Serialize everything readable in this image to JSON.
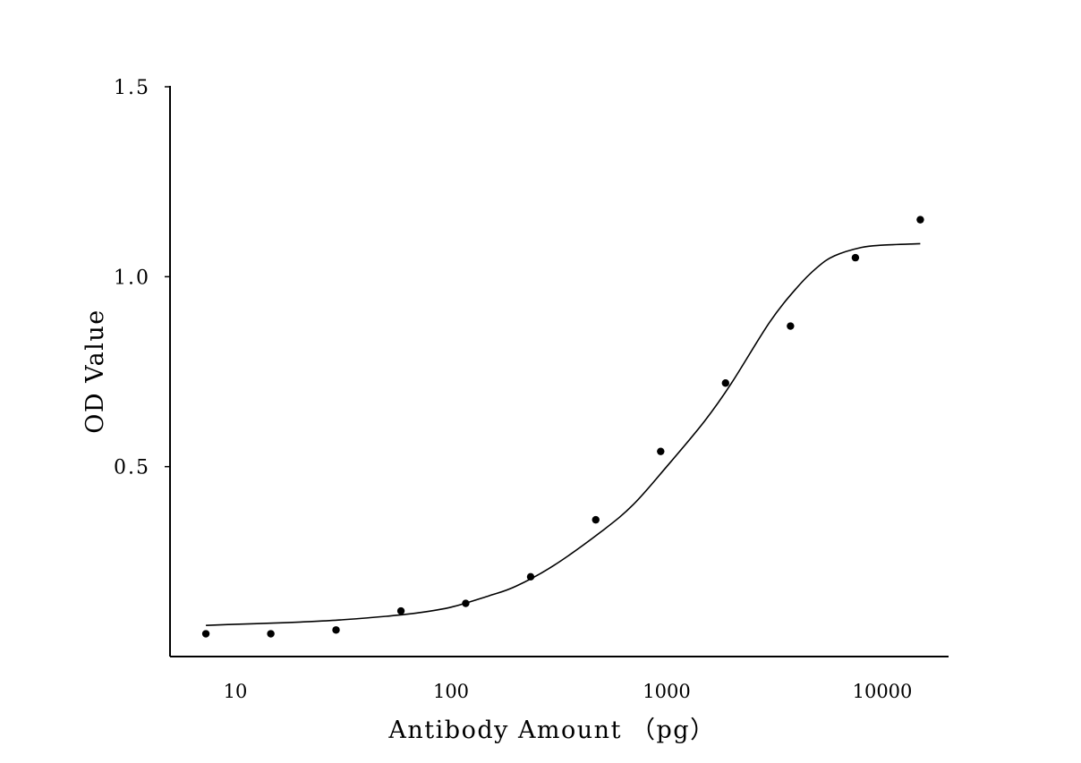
{
  "chart_data": {
    "type": "scatter",
    "title": "",
    "xlabel": "Antibody Amount （pg）",
    "ylabel": "OD Value",
    "x_scale": "log",
    "xlim": [
      5,
      25000
    ],
    "ylim": [
      0,
      1.5
    ],
    "x_ticks": [
      10,
      100,
      1000,
      10000
    ],
    "x_tick_labels": [
      "10",
      "100",
      "1000",
      "10000"
    ],
    "y_ticks": [
      0.5,
      1.0,
      1.5
    ],
    "y_tick_labels": [
      "0.5",
      "1.0",
      "1.5"
    ],
    "grid": false,
    "legend": "none",
    "colors": {
      "points": "#000000",
      "curve": "#000000",
      "axes": "#000000"
    },
    "series": [
      {
        "kind": "points",
        "x": [
          7.3,
          14.6,
          29.3,
          58.6,
          117,
          234,
          469,
          938,
          1875,
          3750,
          7500,
          15000
        ],
        "y": [
          0.06,
          0.06,
          0.07,
          0.12,
          0.14,
          0.21,
          0.36,
          0.54,
          0.72,
          0.87,
          1.05,
          1.15
        ]
      },
      {
        "kind": "fit",
        "x": [
          7.3,
          10,
          15,
          20,
          30,
          50,
          70,
          100,
          150,
          200,
          300,
          500,
          700,
          1000,
          1500,
          2000,
          3000,
          4000,
          5000,
          6000,
          8000,
          10000,
          15000
        ],
        "y": [
          0.082,
          0.085,
          0.088,
          0.091,
          0.096,
          0.106,
          0.115,
          0.13,
          0.16,
          0.185,
          0.24,
          0.33,
          0.4,
          0.5,
          0.62,
          0.72,
          0.88,
          0.97,
          1.025,
          1.055,
          1.077,
          1.083,
          1.087
        ]
      }
    ]
  }
}
